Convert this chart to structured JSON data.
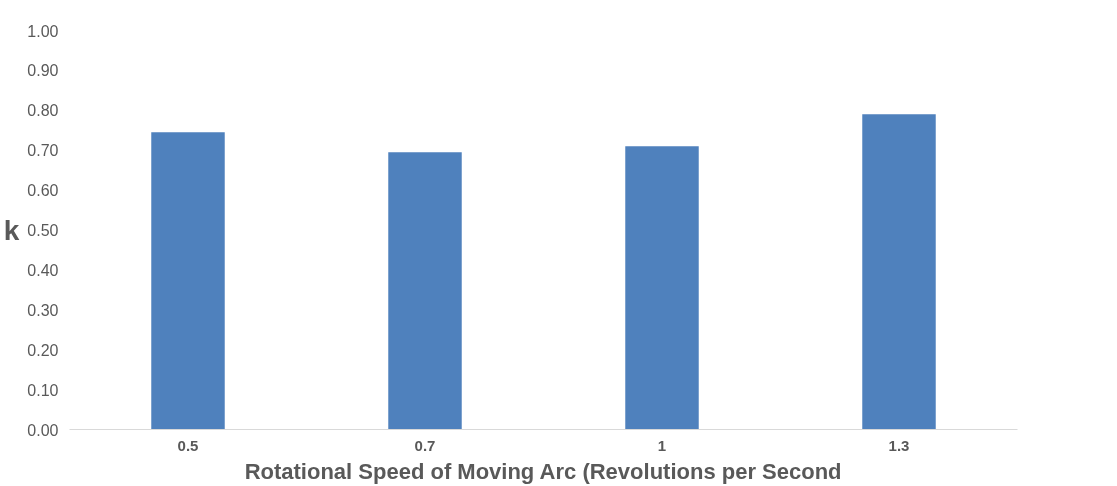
{
  "chart_data": {
    "type": "bar",
    "xlabel": "Rotational Speed of Moving Arc (Revolutions per Second",
    "ylabel": "k",
    "categories": [
      "0.5",
      "0.7",
      "1",
      "1.3"
    ],
    "values": [
      0.745,
      0.695,
      0.71,
      0.79
    ],
    "color": "#4f81bd",
    "ylim": [
      0,
      1
    ],
    "yticks": [
      {
        "value": 0,
        "label": "0.00"
      },
      {
        "value": 0.1,
        "label": "0.10"
      },
      {
        "value": 0.2,
        "label": "0.20"
      },
      {
        "value": 0.3,
        "label": "0.30"
      },
      {
        "value": 0.4,
        "label": "0.40"
      },
      {
        "value": 0.5,
        "label": "0.50"
      },
      {
        "value": 0.6,
        "label": "0.60"
      },
      {
        "value": 0.7,
        "label": "0.70"
      },
      {
        "value": 0.8,
        "label": "0.80"
      },
      {
        "value": 0.9,
        "label": "0.90"
      },
      {
        "value": 1,
        "label": "1.00"
      }
    ],
    "grid": false
  }
}
